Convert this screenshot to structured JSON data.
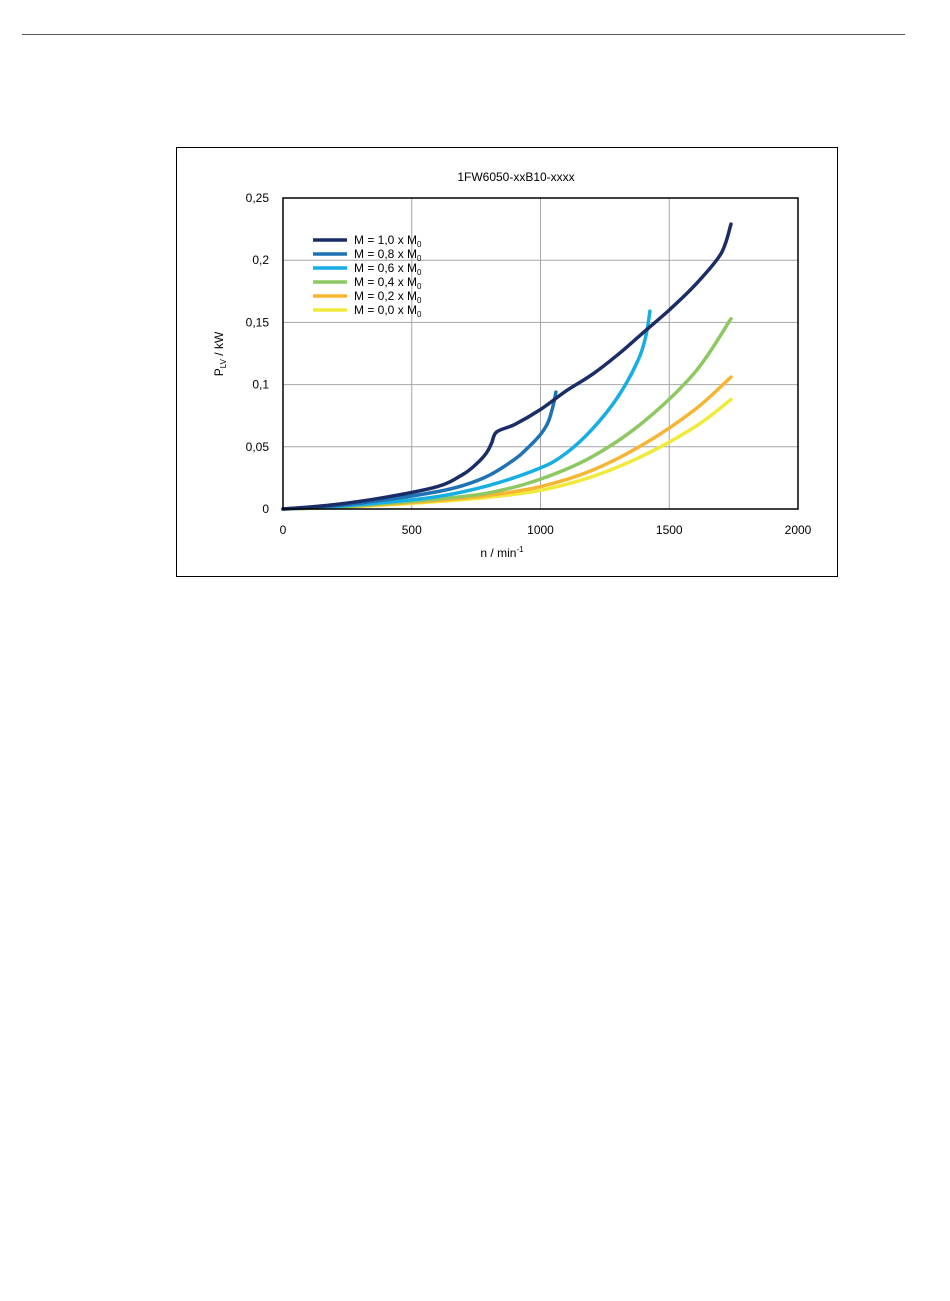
{
  "chart_data": {
    "type": "line",
    "title": "1FW6050-xxB10-xxxx",
    "xlabel": {
      "main": "n / min",
      "sup": "-1"
    },
    "ylabel": {
      "main": "P",
      "sub": "LV",
      "rest": " / kW"
    },
    "xlim": [
      0,
      2000
    ],
    "ylim": [
      0,
      0.25
    ],
    "xticks": [
      0,
      500,
      1000,
      1500,
      2000
    ],
    "xtick_labels": [
      "0",
      "500",
      "1000",
      "1500",
      "2000"
    ],
    "yticks": [
      0,
      0.05,
      0.1,
      0.15,
      0.2,
      0.25
    ],
    "ytick_labels": [
      "0",
      "0,05",
      "0,1",
      "0,15",
      "0,2",
      "0,25"
    ],
    "grid": true,
    "legend_position": "top-left",
    "series": [
      {
        "name": "M = 1,0 x M",
        "sub": "0",
        "color": "#1b2d66",
        "points": [
          [
            0,
            0
          ],
          [
            200,
            0.0035
          ],
          [
            400,
            0.0095
          ],
          [
            600,
            0.018
          ],
          [
            700,
            0.028
          ],
          [
            750,
            0.036
          ],
          [
            790,
            0.045
          ],
          [
            810,
            0.053
          ],
          [
            830,
            0.062
          ],
          [
            900,
            0.068
          ],
          [
            1000,
            0.08
          ],
          [
            1100,
            0.095
          ],
          [
            1200,
            0.108
          ],
          [
            1300,
            0.124
          ],
          [
            1400,
            0.142
          ],
          [
            1500,
            0.16
          ],
          [
            1600,
            0.18
          ],
          [
            1700,
            0.205
          ],
          [
            1740,
            0.229
          ]
        ]
      },
      {
        "name": "M = 0,8 x M",
        "sub": "0",
        "color": "#1f72b4",
        "points": [
          [
            0,
            0
          ],
          [
            200,
            0.0025
          ],
          [
            400,
            0.0075
          ],
          [
            600,
            0.014
          ],
          [
            700,
            0.019
          ],
          [
            800,
            0.027
          ],
          [
            900,
            0.04
          ],
          [
            950,
            0.049
          ],
          [
            1000,
            0.06
          ],
          [
            1030,
            0.07
          ],
          [
            1050,
            0.084
          ],
          [
            1060,
            0.094
          ]
        ]
      },
      {
        "name": "M = 0,6 x M",
        "sub": "0",
        "color": "#17aee3",
        "points": [
          [
            0,
            0
          ],
          [
            200,
            0.002
          ],
          [
            400,
            0.0055
          ],
          [
            600,
            0.01
          ],
          [
            800,
            0.019
          ],
          [
            1000,
            0.033
          ],
          [
            1100,
            0.045
          ],
          [
            1200,
            0.064
          ],
          [
            1300,
            0.09
          ],
          [
            1380,
            0.12
          ],
          [
            1410,
            0.14
          ],
          [
            1425,
            0.159
          ]
        ]
      },
      {
        "name": "M = 0,4 x M",
        "sub": "0",
        "color": "#8dc863",
        "points": [
          [
            0,
            0
          ],
          [
            200,
            0.0015
          ],
          [
            400,
            0.0045
          ],
          [
            600,
            0.008
          ],
          [
            800,
            0.013
          ],
          [
            1000,
            0.024
          ],
          [
            1200,
            0.042
          ],
          [
            1400,
            0.07
          ],
          [
            1600,
            0.11
          ],
          [
            1740,
            0.153
          ]
        ]
      },
      {
        "name": "M = 0,2 x M",
        "sub": "0",
        "color": "#f7b534",
        "points": [
          [
            0,
            0
          ],
          [
            200,
            0.0013
          ],
          [
            400,
            0.0038
          ],
          [
            600,
            0.0068
          ],
          [
            800,
            0.011
          ],
          [
            1000,
            0.018
          ],
          [
            1200,
            0.031
          ],
          [
            1400,
            0.052
          ],
          [
            1600,
            0.08
          ],
          [
            1740,
            0.106
          ]
        ]
      },
      {
        "name": "M = 0,0 x M",
        "sub": "0",
        "color": "#f2ea3a",
        "points": [
          [
            0,
            0
          ],
          [
            200,
            0.0012
          ],
          [
            400,
            0.0033
          ],
          [
            600,
            0.006
          ],
          [
            800,
            0.0095
          ],
          [
            1000,
            0.015
          ],
          [
            1200,
            0.026
          ],
          [
            1400,
            0.043
          ],
          [
            1600,
            0.066
          ],
          [
            1740,
            0.088
          ]
        ]
      }
    ]
  }
}
